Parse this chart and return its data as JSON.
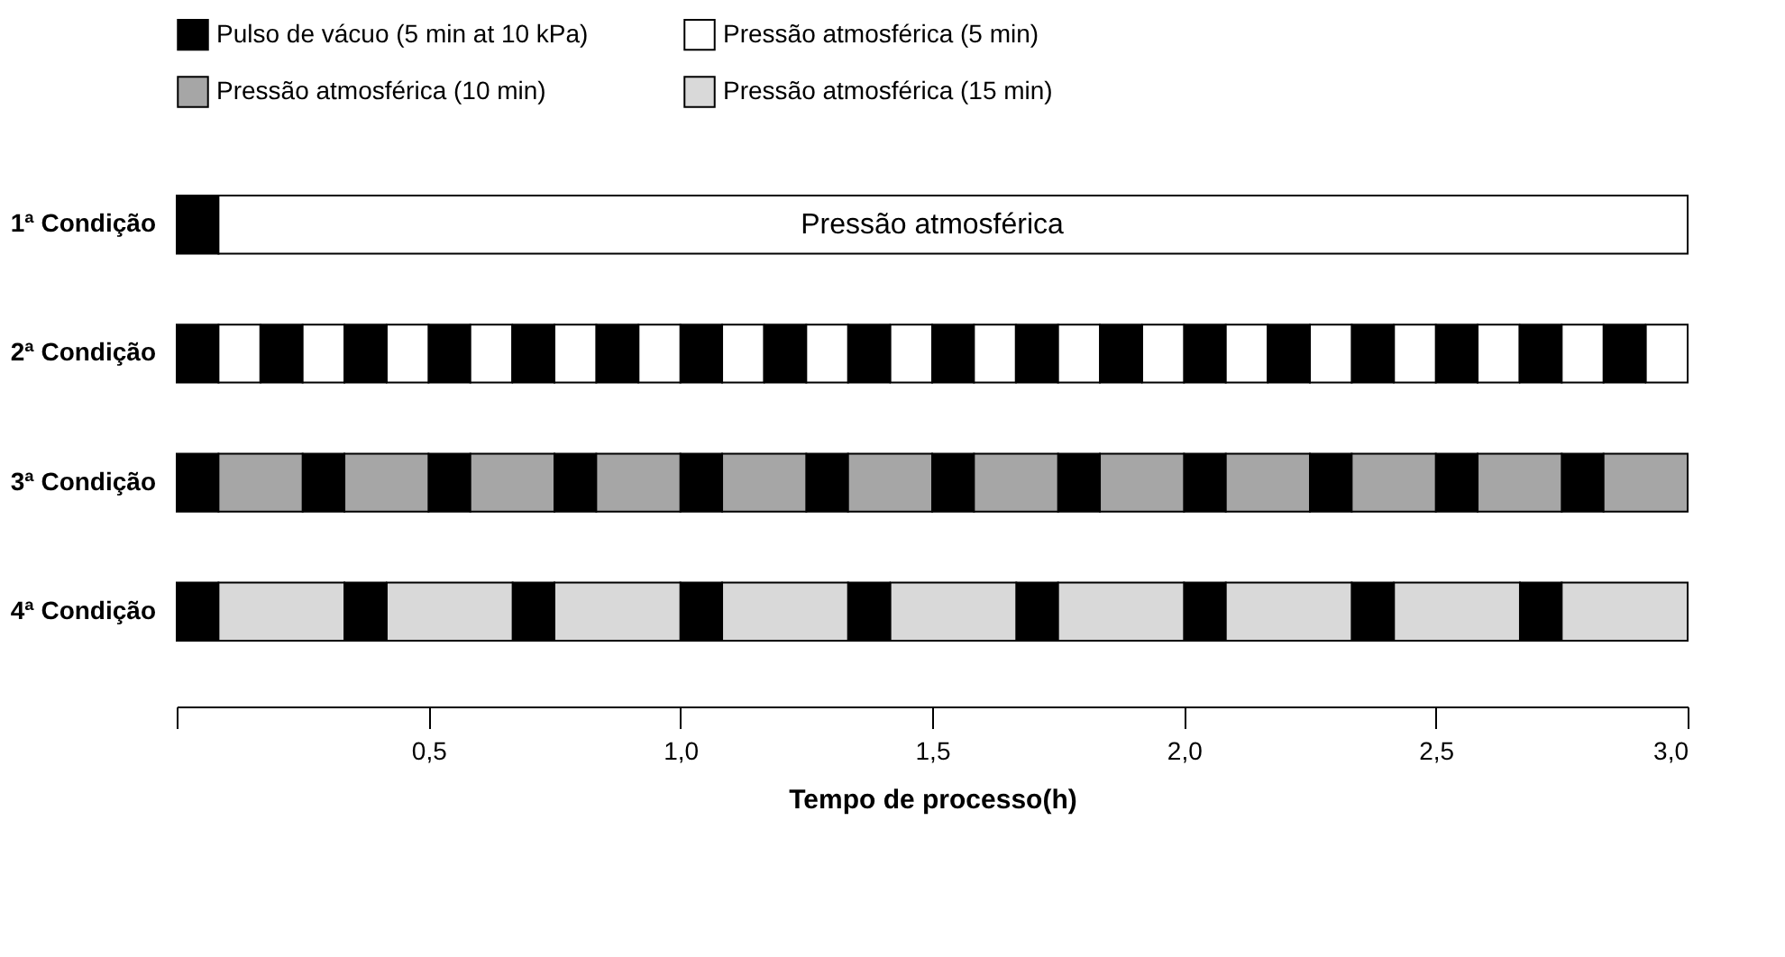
{
  "chart_data": {
    "type": "bar",
    "orientation": "horizontal",
    "xlabel": "Tempo de processo(h)",
    "xlim": [
      0,
      3
    ],
    "xticks": [
      {
        "value": 0,
        "label": null
      },
      {
        "value": 0.5,
        "label": "0,5"
      },
      {
        "value": 1,
        "label": "1,0"
      },
      {
        "value": 1.5,
        "label": "1,5"
      },
      {
        "value": 2,
        "label": "2,0"
      },
      {
        "value": 2.5,
        "label": "2,5"
      },
      {
        "value": 3,
        "label": "3,0"
      }
    ],
    "categories": [
      "1ª Condição",
      "2ª Condição",
      "3ª Condição",
      "4ª Condição"
    ],
    "legend": "top",
    "annotations": [
      "Pressão atmosférica"
    ],
    "series": [
      {
        "name": "Pulso de vácuo (5 min at 10 kPa)",
        "color": "#000000",
        "base": [
          0,
          0,
          0,
          0
        ],
        "values": [
          0.083,
          0.083,
          0.083,
          0.083
        ]
      },
      {
        "color": "#000000",
        "base": [
          null,
          0.167,
          0.25,
          0.333
        ],
        "values": [
          null,
          0.083,
          0.083,
          0.083
        ]
      },
      {
        "color": "#000000",
        "base": [
          null,
          0.333,
          0.5,
          0.667
        ],
        "values": [
          null,
          0.083,
          0.083,
          0.083
        ]
      },
      {
        "color": "#000000",
        "base": [
          null,
          0.5,
          0.75,
          1.0
        ],
        "values": [
          null,
          0.083,
          0.083,
          0.083
        ]
      },
      {
        "color": "#000000",
        "base": [
          null,
          0.667,
          1.0,
          1.333
        ],
        "values": [
          null,
          0.083,
          0.083,
          0.083
        ]
      },
      {
        "color": "#000000",
        "base": [
          null,
          0.833,
          1.25,
          1.667
        ],
        "values": [
          null,
          0.083,
          0.083,
          0.083
        ]
      },
      {
        "color": "#000000",
        "base": [
          null,
          1.0,
          1.5,
          2.0
        ],
        "values": [
          null,
          0.083,
          0.083,
          0.083
        ]
      },
      {
        "color": "#000000",
        "base": [
          null,
          1.167,
          1.75,
          2.333
        ],
        "values": [
          null,
          0.083,
          0.083,
          0.083
        ]
      },
      {
        "color": "#000000",
        "base": [
          null,
          1.333,
          2.0,
          2.667
        ],
        "values": [
          null,
          0.083,
          0.083,
          0.083
        ]
      },
      {
        "color": "#000000",
        "base": [
          null,
          1.5,
          2.25,
          null
        ],
        "values": [
          null,
          0.083,
          0.083,
          null
        ]
      },
      {
        "color": "#000000",
        "base": [
          null,
          1.667,
          2.5,
          null
        ],
        "values": [
          null,
          0.083,
          0.083,
          null
        ]
      },
      {
        "color": "#000000",
        "base": [
          null,
          1.833,
          2.75,
          null
        ],
        "values": [
          null,
          0.083,
          0.083,
          null
        ]
      },
      {
        "color": "#000000",
        "base": [
          null,
          2.0,
          null,
          null
        ],
        "values": [
          null,
          0.083,
          null,
          null
        ]
      },
      {
        "color": "#000000",
        "base": [
          null,
          2.167,
          null,
          null
        ],
        "values": [
          null,
          0.083,
          null,
          null
        ]
      },
      {
        "color": "#000000",
        "base": [
          null,
          2.333,
          null,
          null
        ],
        "values": [
          null,
          0.083,
          null,
          null
        ]
      },
      {
        "color": "#000000",
        "base": [
          null,
          2.5,
          null,
          null
        ],
        "values": [
          null,
          0.083,
          null,
          null
        ]
      },
      {
        "color": "#000000",
        "base": [
          null,
          2.667,
          null,
          null
        ],
        "values": [
          null,
          0.083,
          null,
          null
        ]
      },
      {
        "color": "#000000",
        "base": [
          null,
          2.833,
          null,
          null
        ],
        "values": [
          null,
          0.083,
          null,
          null
        ]
      },
      {
        "name": "Pressão atmosférica (5 min)",
        "color": "#ffffff",
        "base": [
          0.083,
          0.083,
          null,
          null
        ],
        "values": [
          2.917,
          0.083,
          null,
          null
        ]
      },
      {
        "color": "#ffffff",
        "base": [
          null,
          0.25,
          null,
          null
        ],
        "values": [
          null,
          0.083,
          null,
          null
        ]
      },
      {
        "color": "#ffffff",
        "base": [
          null,
          0.417,
          null,
          null
        ],
        "values": [
          null,
          0.083,
          null,
          null
        ]
      },
      {
        "color": "#ffffff",
        "base": [
          null,
          0.583,
          null,
          null
        ],
        "values": [
          null,
          0.083,
          null,
          null
        ]
      },
      {
        "color": "#ffffff",
        "base": [
          null,
          0.75,
          null,
          null
        ],
        "values": [
          null,
          0.083,
          null,
          null
        ]
      },
      {
        "color": "#ffffff",
        "base": [
          null,
          0.917,
          null,
          null
        ],
        "values": [
          null,
          0.083,
          null,
          null
        ]
      },
      {
        "color": "#ffffff",
        "base": [
          null,
          1.083,
          null,
          null
        ],
        "values": [
          null,
          0.083,
          null,
          null
        ]
      },
      {
        "color": "#ffffff",
        "base": [
          null,
          1.25,
          null,
          null
        ],
        "values": [
          null,
          0.083,
          null,
          null
        ]
      },
      {
        "color": "#ffffff",
        "base": [
          null,
          1.417,
          null,
          null
        ],
        "values": [
          null,
          0.083,
          null,
          null
        ]
      },
      {
        "color": "#ffffff",
        "base": [
          null,
          1.583,
          null,
          null
        ],
        "values": [
          null,
          0.083,
          null,
          null
        ]
      },
      {
        "color": "#ffffff",
        "base": [
          null,
          1.75,
          null,
          null
        ],
        "values": [
          null,
          0.083,
          null,
          null
        ]
      },
      {
        "color": "#ffffff",
        "base": [
          null,
          1.917,
          null,
          null
        ],
        "values": [
          null,
          0.083,
          null,
          null
        ]
      },
      {
        "color": "#ffffff",
        "base": [
          null,
          2.083,
          null,
          null
        ],
        "values": [
          null,
          0.083,
          null,
          null
        ]
      },
      {
        "color": "#ffffff",
        "base": [
          null,
          2.25,
          null,
          null
        ],
        "values": [
          null,
          0.083,
          null,
          null
        ]
      },
      {
        "color": "#ffffff",
        "base": [
          null,
          2.417,
          null,
          null
        ],
        "values": [
          null,
          0.083,
          null,
          null
        ]
      },
      {
        "color": "#ffffff",
        "base": [
          null,
          2.583,
          null,
          null
        ],
        "values": [
          null,
          0.083,
          null,
          null
        ]
      },
      {
        "color": "#ffffff",
        "base": [
          null,
          2.75,
          null,
          null
        ],
        "values": [
          null,
          0.083,
          null,
          null
        ]
      },
      {
        "color": "#ffffff",
        "base": [
          null,
          2.917,
          null,
          null
        ],
        "values": [
          null,
          0.083,
          null,
          null
        ]
      },
      {
        "name": "Pressão atmosférica (10 min)",
        "color": "#a6a6a6",
        "base": [
          null,
          null,
          0.083,
          null
        ],
        "values": [
          null,
          null,
          0.167,
          null
        ]
      },
      {
        "color": "#a6a6a6",
        "base": [
          null,
          null,
          0.333,
          null
        ],
        "values": [
          null,
          null,
          0.167,
          null
        ]
      },
      {
        "color": "#a6a6a6",
        "base": [
          null,
          null,
          0.583,
          null
        ],
        "values": [
          null,
          null,
          0.167,
          null
        ]
      },
      {
        "color": "#a6a6a6",
        "base": [
          null,
          null,
          0.833,
          null
        ],
        "values": [
          null,
          null,
          0.167,
          null
        ]
      },
      {
        "color": "#a6a6a6",
        "base": [
          null,
          null,
          1.083,
          null
        ],
        "values": [
          null,
          null,
          0.167,
          null
        ]
      },
      {
        "color": "#a6a6a6",
        "base": [
          null,
          null,
          1.333,
          null
        ],
        "values": [
          null,
          null,
          0.167,
          null
        ]
      },
      {
        "color": "#a6a6a6",
        "base": [
          null,
          null,
          1.583,
          null
        ],
        "values": [
          null,
          null,
          0.167,
          null
        ]
      },
      {
        "color": "#a6a6a6",
        "base": [
          null,
          null,
          1.833,
          null
        ],
        "values": [
          null,
          null,
          0.167,
          null
        ]
      },
      {
        "color": "#a6a6a6",
        "base": [
          null,
          null,
          2.083,
          null
        ],
        "values": [
          null,
          null,
          0.167,
          null
        ]
      },
      {
        "color": "#a6a6a6",
        "base": [
          null,
          null,
          2.333,
          null
        ],
        "values": [
          null,
          null,
          0.167,
          null
        ]
      },
      {
        "color": "#a6a6a6",
        "base": [
          null,
          null,
          2.583,
          null
        ],
        "values": [
          null,
          null,
          0.167,
          null
        ]
      },
      {
        "color": "#a6a6a6",
        "base": [
          null,
          null,
          2.833,
          null
        ],
        "values": [
          null,
          null,
          0.167,
          null
        ]
      },
      {
        "name": "Pressão atmosférica (15 min)",
        "color": "#d9d9d9",
        "base": [
          null,
          null,
          null,
          0.083
        ],
        "values": [
          null,
          null,
          null,
          0.25
        ]
      },
      {
        "color": "#d9d9d9",
        "base": [
          null,
          null,
          null,
          0.417
        ],
        "values": [
          null,
          null,
          null,
          0.25
        ]
      },
      {
        "color": "#d9d9d9",
        "base": [
          null,
          null,
          null,
          0.75
        ],
        "values": [
          null,
          null,
          null,
          0.25
        ]
      },
      {
        "color": "#d9d9d9",
        "base": [
          null,
          null,
          null,
          1.083
        ],
        "values": [
          null,
          null,
          null,
          0.25
        ]
      },
      {
        "color": "#d9d9d9",
        "base": [
          null,
          null,
          null,
          1.417
        ],
        "values": [
          null,
          null,
          null,
          0.25
        ]
      },
      {
        "color": "#d9d9d9",
        "base": [
          null,
          null,
          null,
          1.75
        ],
        "values": [
          null,
          null,
          null,
          0.25
        ]
      },
      {
        "color": "#d9d9d9",
        "base": [
          null,
          null,
          null,
          2.083
        ],
        "values": [
          null,
          null,
          null,
          0.25
        ]
      },
      {
        "color": "#d9d9d9",
        "base": [
          null,
          null,
          null,
          2.417
        ],
        "values": [
          null,
          null,
          null,
          0.25
        ]
      },
      {
        "color": "#d9d9d9",
        "base": [
          null,
          null,
          null,
          2.75
        ],
        "values": [
          null,
          null,
          null,
          0.25
        ]
      }
    ]
  }
}
